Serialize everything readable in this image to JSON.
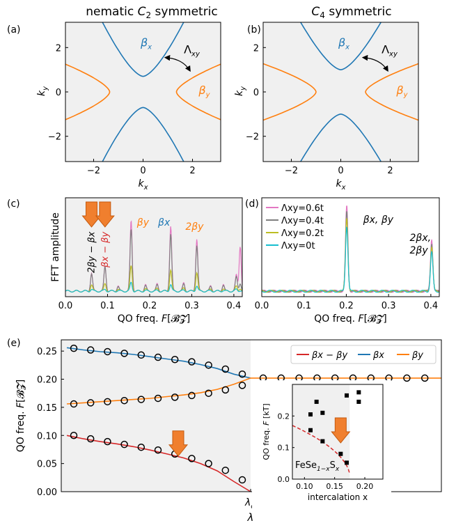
{
  "colors": {
    "blue": "#1f77b4",
    "orange": "#ff7f0e",
    "red": "#d62728",
    "gray": "#7f7f7f",
    "pink": "#e377c2",
    "olive": "#bcbd22",
    "cyan": "#17becf",
    "panel_bg": "#f0f0f0",
    "arrow": "#f07f2e"
  },
  "headings": {
    "left": "nematic C₂ symmetric",
    "right": "C₄ symmetric"
  },
  "panel_labels": {
    "a": "(a)",
    "b": "(b)",
    "c": "(c)",
    "d": "(d)",
    "e": "(e)"
  },
  "chart_data": [
    {
      "panel": "a",
      "type": "line",
      "xlabel": "kx",
      "ylabel": "ky",
      "xlim": [
        -3.14,
        3.14
      ],
      "ylim": [
        -3.14,
        3.14
      ],
      "xticks": [
        -2,
        0,
        2
      ],
      "yticks": [
        -2,
        0,
        2
      ],
      "xtick_labels": [
        "−2",
        "0",
        "2"
      ],
      "ytick_labels": [
        "−2",
        "0",
        "2"
      ],
      "annotations": {
        "beta_x": "βx",
        "beta_y": "βy",
        "lambda_xy": "Λxy"
      },
      "series": [
        {
          "name": "βx",
          "color": "blue",
          "description": "electron pockets at (0,±π), tip at ky=±0.7"
        },
        {
          "name": "βy",
          "color": "orange",
          "description": "pockets at (±π,0), tip at kx=±1.35"
        }
      ]
    },
    {
      "panel": "b",
      "type": "line",
      "xlabel": "kx",
      "ylabel": "ky",
      "xlim": [
        -3.14,
        3.14
      ],
      "ylim": [
        -3.14,
        3.14
      ],
      "xticks": [
        -2,
        0,
        2
      ],
      "yticks": [
        -2,
        0,
        2
      ],
      "xtick_labels": [
        "−2",
        "0",
        "2"
      ],
      "ytick_labels": [
        "−2",
        "0",
        "2"
      ],
      "annotations": {
        "beta_x": "βx",
        "beta_y": "βy",
        "lambda_xy": "Λxy"
      },
      "series": [
        {
          "name": "βx",
          "color": "blue",
          "description": "pockets at (0,±π), tip at ky=±1.0"
        },
        {
          "name": "βy",
          "color": "orange",
          "description": "pockets at (±π,0), tip at kx=±1.0"
        }
      ]
    },
    {
      "panel": "c",
      "type": "line",
      "xlabel": "QO freq. F[𝓑𝓩]",
      "ylabel": "FFT amplitude",
      "xlim": [
        0,
        0.42
      ],
      "xticks": [
        0.0,
        0.1,
        0.2,
        0.3,
        0.4
      ],
      "xtick_labels": [
        "0.0",
        "0.1",
        "0.2",
        "0.3",
        "0.4"
      ],
      "peaks": [
        {
          "x": 0.062,
          "label": "2βy − βx"
        },
        {
          "x": 0.094,
          "label": "βx − βy"
        },
        {
          "x": 0.156,
          "label": "βy"
        },
        {
          "x": 0.25,
          "label": "βx"
        },
        {
          "x": 0.312,
          "label": "2βy"
        }
      ],
      "series": [
        {
          "name": "Λxy=0.6t",
          "color": "pink",
          "scale": 1.0
        },
        {
          "name": "Λxy=0.4t",
          "color": "gray",
          "scale": 0.88
        },
        {
          "name": "Λxy=0.2t",
          "color": "olive",
          "scale": 0.6
        },
        {
          "name": "Λxy=0t",
          "color": "cyan",
          "scale": 0.35
        }
      ]
    },
    {
      "panel": "d",
      "type": "line",
      "xlabel": "QO freq. F[𝓑𝓩]",
      "xlim": [
        0,
        0.42
      ],
      "xticks": [
        0.0,
        0.1,
        0.2,
        0.3,
        0.4
      ],
      "xtick_labels": [
        "0.0",
        "0.1",
        "0.2",
        "0.3",
        "0.4"
      ],
      "peak_labels": {
        "first": "βx, βy",
        "second_a": "2βx,",
        "second_b": "2βy"
      },
      "legend": [
        "Λxy=0.6t",
        "Λxy=0.4t",
        "Λxy=0.2t",
        "Λxy=0t"
      ],
      "series": [
        {
          "name": "Λxy=0.6t",
          "color": "pink",
          "peak": 1.0
        },
        {
          "name": "Λxy=0.4t",
          "color": "gray",
          "peak": 0.92
        },
        {
          "name": "Λxy=0.2t",
          "color": "olive",
          "peak": 0.85
        },
        {
          "name": "Λxy=0t",
          "color": "cyan",
          "peak": 0.75
        }
      ]
    },
    {
      "panel": "e",
      "type": "line",
      "xlabel": "λ",
      "ylabel": "QO freq. F[𝓑𝓩]",
      "ylim": [
        0,
        0.27
      ],
      "yticks": [
        0.0,
        0.05,
        0.1,
        0.15,
        0.2,
        0.25
      ],
      "ytick_labels": [
        "0.00",
        "0.05",
        "0.10",
        "0.15",
        "0.20",
        "0.25"
      ],
      "xtick_label": "λc",
      "legend": [
        "βx − βy",
        "βx",
        "βy"
      ],
      "series": [
        {
          "name": "βx",
          "color": "blue",
          "values": [
            0.256,
            0.252,
            0.249,
            0.247,
            0.244,
            0.24,
            0.236,
            0.232,
            0.226,
            0.219,
            0.209,
            0.202
          ]
        },
        {
          "name": "βy",
          "color": "orange",
          "values": [
            0.156,
            0.158,
            0.16,
            0.162,
            0.164,
            0.166,
            0.169,
            0.172,
            0.176,
            0.182,
            0.191,
            0.202
          ]
        },
        {
          "name": "βx − βy",
          "color": "red",
          "values": [
            0.1,
            0.094,
            0.089,
            0.085,
            0.08,
            0.074,
            0.067,
            0.06,
            0.05,
            0.037,
            0.018,
            0.0
          ]
        }
      ],
      "markers_lambda_lt_c": {
        "blue": [
          0.255,
          0.252,
          0.249,
          0.246,
          0.243,
          0.239,
          0.235,
          0.231,
          0.225,
          0.218,
          0.209
        ],
        "orange": [
          0.156,
          0.158,
          0.16,
          0.162,
          0.164,
          0.166,
          0.168,
          0.171,
          0.175,
          0.181,
          0.189
        ],
        "red": [
          0.1,
          0.094,
          0.089,
          0.084,
          0.079,
          0.074,
          0.067,
          0.059,
          0.05,
          0.038,
          0.021
        ]
      },
      "markers_lambda_gt_c": [
        0.202,
        0.202,
        0.202,
        0.202,
        0.202,
        0.202,
        0.202,
        0.202,
        0.202,
        0.202
      ]
    },
    {
      "panel": "e-inset",
      "type": "scatter",
      "xlabel": "intercalation x",
      "ylabel": "QO freq. F [kT]",
      "xlim": [
        0.08,
        0.23
      ],
      "ylim": [
        0,
        0.3
      ],
      "xticks": [
        0.1,
        0.15,
        0.2
      ],
      "xtick_labels": [
        "0.10",
        "0.15",
        "0.20"
      ],
      "yticks": [
        0.0,
        0.1,
        0.2
      ],
      "ytick_labels": [
        "0.0",
        "0.1",
        "0.2"
      ],
      "annotation": "FeSe1−xSx",
      "points": [
        {
          "x": 0.11,
          "y": 0.205
        },
        {
          "x": 0.11,
          "y": 0.155
        },
        {
          "x": 0.12,
          "y": 0.245
        },
        {
          "x": 0.13,
          "y": 0.21
        },
        {
          "x": 0.13,
          "y": 0.12
        },
        {
          "x": 0.16,
          "y": 0.08
        },
        {
          "x": 0.17,
          "y": 0.052
        },
        {
          "x": 0.17,
          "y": 0.265
        },
        {
          "x": 0.19,
          "y": 0.275
        },
        {
          "x": 0.19,
          "y": 0.245
        }
      ]
    }
  ]
}
